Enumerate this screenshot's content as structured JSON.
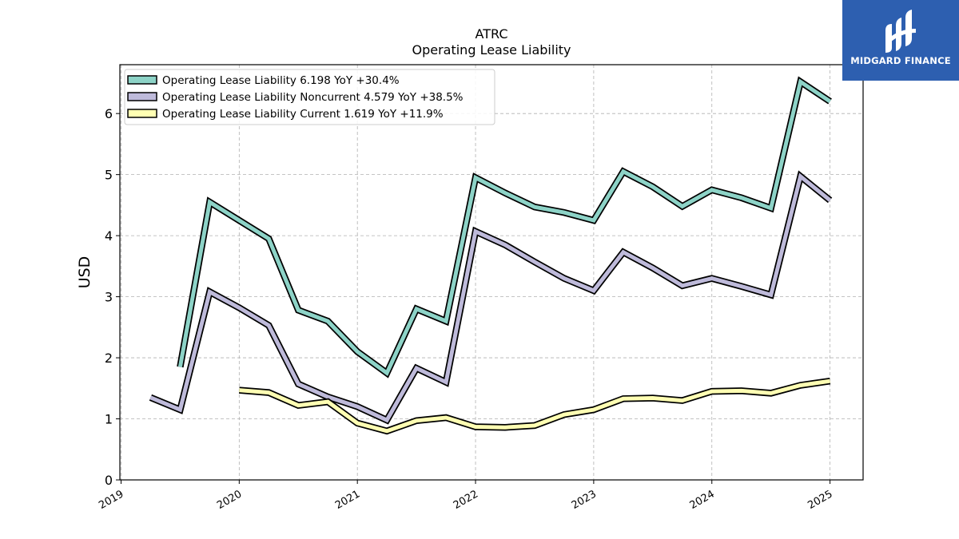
{
  "chart_data": {
    "type": "line",
    "title": "ATRC",
    "subtitle": "Operating Lease Liability",
    "ylabel": "USD",
    "xlabel": "",
    "ylim": [
      0,
      6.8
    ],
    "xlim": [
      2018.99,
      2025.28
    ],
    "yticks": [
      0,
      1,
      2,
      3,
      4,
      5,
      6
    ],
    "xticks": [
      "2019",
      "2020",
      "2021",
      "2022",
      "2023",
      "2024",
      "2025"
    ],
    "grid": true,
    "legend_position": "top-left",
    "series": [
      {
        "name": "Operating Lease Liability  6.198 YoY +30.4%",
        "color": "#8dd3c7",
        "points": [
          [
            2019.5,
            1.85
          ],
          [
            2019.75,
            4.55
          ],
          [
            2020.0,
            4.25
          ],
          [
            2020.25,
            3.95
          ],
          [
            2020.5,
            2.78
          ],
          [
            2020.75,
            2.6
          ],
          [
            2021.0,
            2.1
          ],
          [
            2021.25,
            1.75
          ],
          [
            2021.5,
            2.8
          ],
          [
            2021.75,
            2.6
          ],
          [
            2022.0,
            4.95
          ],
          [
            2022.25,
            4.7
          ],
          [
            2022.5,
            4.47
          ],
          [
            2022.75,
            4.38
          ],
          [
            2023.0,
            4.25
          ],
          [
            2023.25,
            5.05
          ],
          [
            2023.5,
            4.8
          ],
          [
            2023.75,
            4.48
          ],
          [
            2024.0,
            4.75
          ],
          [
            2024.25,
            4.62
          ],
          [
            2024.5,
            4.45
          ],
          [
            2024.75,
            6.52
          ],
          [
            2025.0,
            6.198
          ]
        ]
      },
      {
        "name": "Operating Lease Liability Noncurrent  4.579 YoY +38.5%",
        "color": "#bebada",
        "points": [
          [
            2019.25,
            1.35
          ],
          [
            2019.5,
            1.15
          ],
          [
            2019.75,
            3.08
          ],
          [
            2020.0,
            2.82
          ],
          [
            2020.25,
            2.53
          ],
          [
            2020.5,
            1.57
          ],
          [
            2020.75,
            1.36
          ],
          [
            2021.0,
            1.2
          ],
          [
            2021.25,
            0.98
          ],
          [
            2021.5,
            1.83
          ],
          [
            2021.75,
            1.6
          ],
          [
            2022.0,
            4.07
          ],
          [
            2022.25,
            3.85
          ],
          [
            2022.5,
            3.57
          ],
          [
            2022.75,
            3.3
          ],
          [
            2023.0,
            3.1
          ],
          [
            2023.25,
            3.73
          ],
          [
            2023.5,
            3.47
          ],
          [
            2023.75,
            3.18
          ],
          [
            2024.0,
            3.3
          ],
          [
            2024.25,
            3.17
          ],
          [
            2024.5,
            3.03
          ],
          [
            2024.75,
            4.97
          ],
          [
            2025.0,
            4.579
          ]
        ]
      },
      {
        "name": "Operating Lease Liability Current  1.619 YoY +11.9%",
        "color": "#ffffb3",
        "points": [
          [
            2020.0,
            1.47
          ],
          [
            2020.25,
            1.43
          ],
          [
            2020.5,
            1.22
          ],
          [
            2020.75,
            1.28
          ],
          [
            2021.0,
            0.93
          ],
          [
            2021.25,
            0.8
          ],
          [
            2021.5,
            0.97
          ],
          [
            2021.75,
            1.02
          ],
          [
            2022.0,
            0.87
          ],
          [
            2022.25,
            0.86
          ],
          [
            2022.5,
            0.89
          ],
          [
            2022.75,
            1.07
          ],
          [
            2023.0,
            1.15
          ],
          [
            2023.25,
            1.33
          ],
          [
            2023.5,
            1.34
          ],
          [
            2023.75,
            1.3
          ],
          [
            2024.0,
            1.45
          ],
          [
            2024.25,
            1.46
          ],
          [
            2024.5,
            1.42
          ],
          [
            2024.75,
            1.55
          ],
          [
            2025.0,
            1.619
          ]
        ]
      }
    ]
  },
  "logo": {
    "text": "MIDGARD FINANCE",
    "background": "#2d5fb0",
    "icon": "midgard-logo-icon"
  }
}
